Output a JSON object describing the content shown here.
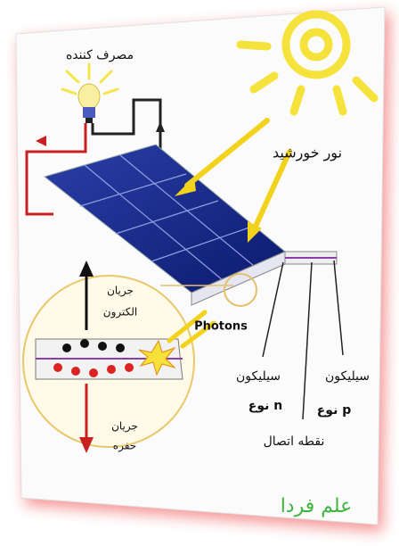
{
  "labels": {
    "consumer": "مصرف کننده",
    "sunlight": "نور خورشید",
    "electron_current": [
      "جریان",
      "الکترون"
    ],
    "photons": "Photons",
    "silicon_n": [
      "سیلیکون",
      "نوع n"
    ],
    "silicon_p": [
      "سیلیکون",
      "نوع p"
    ],
    "junction": "نقطه اتصال",
    "hole_current": [
      "جریان",
      "حفره"
    ],
    "watermark": "علم فردا"
  }
}
